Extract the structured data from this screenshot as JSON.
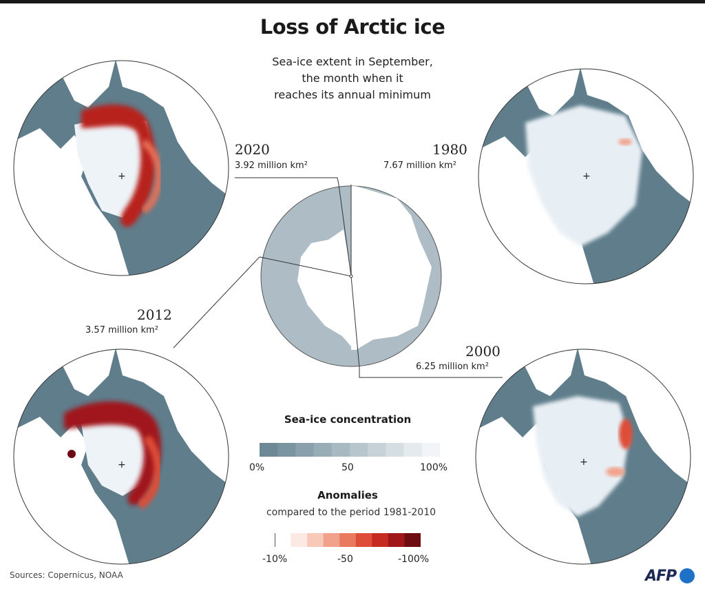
{
  "title": "Loss of Arctic ice",
  "subtitle": {
    "line1": "Sea-ice extent in September,",
    "line2": "the month when it",
    "line3": "reaches its annual minimum"
  },
  "panels": {
    "y2020": {
      "year": "2020",
      "extent": "3.92 million km²",
      "extent_million_km2": 3.92
    },
    "y1980": {
      "year": "1980",
      "extent": "7.67 million km²",
      "extent_million_km2": 7.67
    },
    "y2012": {
      "year": "2012",
      "extent": "3.57 million km²",
      "extent_million_km2": 3.57
    },
    "y2000": {
      "year": "2000",
      "extent": "6.25 million km²",
      "extent_million_km2": 6.25
    }
  },
  "legend": {
    "concentration": {
      "title": "Sea-ice concentration",
      "ticks": [
        "0%",
        "50",
        "100%"
      ],
      "colors": [
        "#6d8995",
        "#7b95a0",
        "#8aa1ab",
        "#99adb6",
        "#a8b9c1",
        "#b7c6cc",
        "#c6d2d7",
        "#d5dee2",
        "#e4eaed",
        "#f1f5f7"
      ]
    },
    "anomalies": {
      "title": "Anomalies",
      "subtitle": "compared to the period 1981-2010",
      "ticks": [
        "-10%",
        "-50",
        "-100%"
      ],
      "colors": [
        "#ffffff",
        "#fde9e3",
        "#f8c8b8",
        "#f2a28b",
        "#e97a60",
        "#dd4d38",
        "#c52b21",
        "#a0171a",
        "#6e0c14"
      ]
    }
  },
  "colors": {
    "ocean": "#5f7d8b",
    "land": "#ffffff",
    "ice": "#edf3f7",
    "anomaly_dark": "#a0171a",
    "anomaly_mid": "#dd4d38",
    "disc": "#aebdc5"
  },
  "sources": "Sources: Copernicus, NOAA",
  "logo": "AFP"
}
